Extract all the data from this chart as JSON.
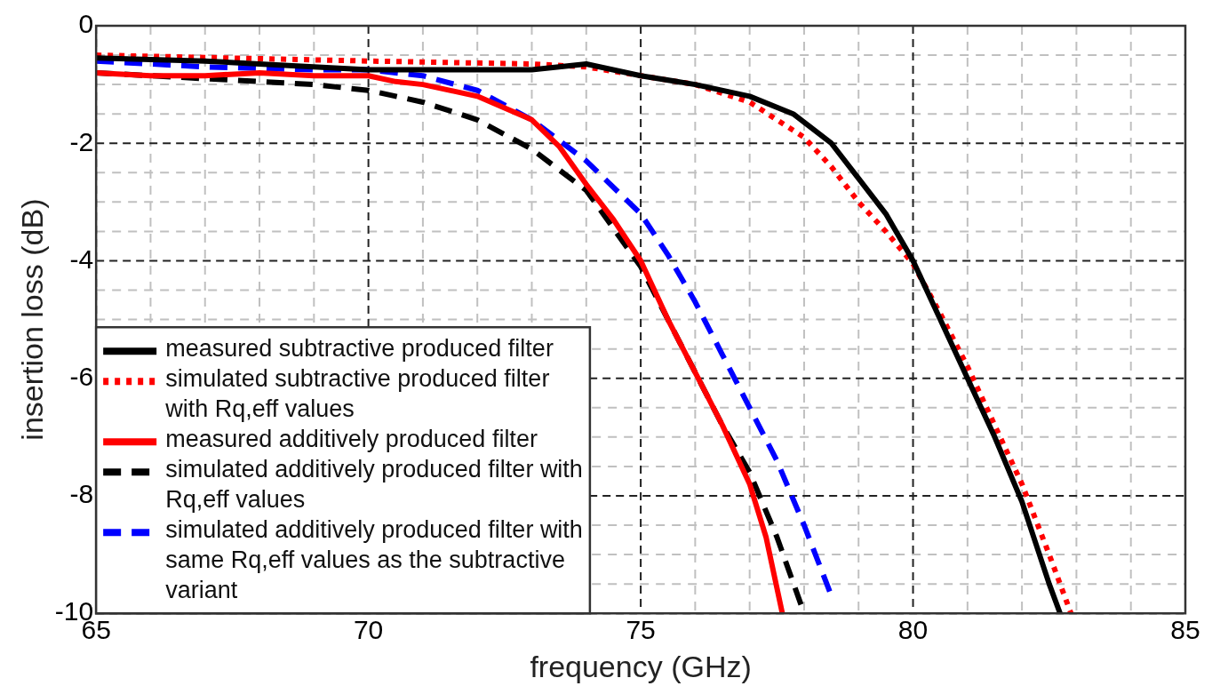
{
  "chart_data": {
    "type": "line",
    "xlabel": "frequency (GHz)",
    "ylabel": "insertion loss (dB)",
    "xlim": [
      65,
      85
    ],
    "ylim": [
      -10,
      0
    ],
    "xticks": [
      65,
      {
        "value": 66,
        "label": null
      },
      {
        "value": 67,
        "label": null
      },
      {
        "value": 68,
        "label": null
      },
      {
        "value": 69,
        "label": null
      },
      70,
      {
        "value": 71,
        "label": null
      },
      {
        "value": 72,
        "label": null
      },
      {
        "value": 73,
        "label": null
      },
      {
        "value": 74,
        "label": null
      },
      75,
      {
        "value": 76,
        "label": null
      },
      {
        "value": 77,
        "label": null
      },
      {
        "value": 78,
        "label": null
      },
      {
        "value": 79,
        "label": null
      },
      80,
      {
        "value": 81,
        "label": null
      },
      {
        "value": 82,
        "label": null
      },
      {
        "value": 83,
        "label": null
      },
      {
        "value": 84,
        "label": null
      },
      85
    ],
    "yticks": [
      -10,
      {
        "value": -9.5,
        "label": null
      },
      {
        "value": -9,
        "label": null
      },
      {
        "value": -8.5,
        "label": null
      },
      -8,
      {
        "value": -7.5,
        "label": null
      },
      {
        "value": -7,
        "label": null
      },
      {
        "value": -6.5,
        "label": null
      },
      -6,
      {
        "value": -5.5,
        "label": null
      },
      {
        "value": -5,
        "label": null
      },
      {
        "value": -4.5,
        "label": null
      },
      -4,
      {
        "value": -3.5,
        "label": null
      },
      {
        "value": -3,
        "label": null
      },
      {
        "value": -2.5,
        "label": null
      },
      -2,
      {
        "value": -1.5,
        "label": null
      },
      {
        "value": -1,
        "label": null
      },
      {
        "value": -0.5,
        "label": null
      },
      0
    ],
    "grid": true,
    "legend": "bottom left",
    "series": [
      {
        "name": "measured subtractive produced filter",
        "color": "#000000",
        "line_style": "solid",
        "x": [
          65,
          67,
          70,
          72,
          73,
          74,
          75,
          76,
          77,
          77.8,
          78.5,
          79,
          79.5,
          80,
          80.5,
          81,
          81.5,
          82,
          82.5,
          82.7
        ],
        "values": [
          -0.55,
          -0.6,
          -0.75,
          -0.75,
          -0.75,
          -0.65,
          -0.85,
          -1.0,
          -1.2,
          -1.5,
          -2.0,
          -2.6,
          -3.2,
          -4.0,
          -5.0,
          -6.0,
          -7.0,
          -8.1,
          -9.5,
          -10
        ]
      },
      {
        "name": "simulated subtractive produced filter with Rq,eff values",
        "color": "#ff0000",
        "line_style": "dotted",
        "x": [
          65,
          70,
          73,
          74,
          75,
          76,
          77,
          78,
          78.5,
          79,
          79.5,
          80,
          80.5,
          81,
          81.5,
          82,
          82.5,
          82.9
        ],
        "values": [
          -0.5,
          -0.6,
          -0.65,
          -0.7,
          -0.85,
          -1.0,
          -1.3,
          -1.9,
          -2.4,
          -3.0,
          -3.5,
          -4.05,
          -4.9,
          -5.8,
          -6.8,
          -7.8,
          -9.0,
          -10
        ]
      },
      {
        "name": "measured additively produced filter",
        "color": "#ff0000",
        "line_style": "solid",
        "x": [
          65,
          66,
          67,
          68,
          69,
          70,
          70.5,
          71,
          72,
          72.5,
          73,
          73.5,
          74,
          74.5,
          75,
          75.5,
          76,
          76.5,
          77,
          77.3,
          77.6
        ],
        "values": [
          -0.8,
          -0.85,
          -0.85,
          -0.8,
          -0.85,
          -0.85,
          -0.95,
          -1.0,
          -1.2,
          -1.4,
          -1.6,
          -2.05,
          -2.7,
          -3.3,
          -4.0,
          -5.0,
          -5.9,
          -6.8,
          -7.8,
          -8.7,
          -10
        ]
      },
      {
        "name": "simulated additively produced filter with Rq,eff values",
        "color": "#000000",
        "line_style": "dashed",
        "x": [
          65,
          67,
          69,
          70,
          71,
          72,
          73,
          74,
          75,
          75.5,
          76,
          76.5,
          77,
          77.5,
          78
        ],
        "values": [
          -0.8,
          -0.9,
          -1.0,
          -1.1,
          -1.3,
          -1.6,
          -2.1,
          -2.8,
          -4.1,
          -5.0,
          -5.9,
          -6.8,
          -7.6,
          -8.7,
          -10
        ]
      },
      {
        "name": "simulated additively produced filter with same Rq,eff values as the subtractive variant",
        "color": "#0000ff",
        "line_style": "dashed",
        "x": [
          65,
          67,
          69,
          70,
          71,
          72,
          73,
          74,
          75,
          75.5,
          76,
          76.5,
          77,
          77.5,
          78,
          78.5
        ],
        "values": [
          -0.6,
          -0.7,
          -0.75,
          -0.75,
          -0.85,
          -1.1,
          -1.6,
          -2.3,
          -3.2,
          -3.9,
          -4.7,
          -5.6,
          -6.5,
          -7.4,
          -8.5,
          -9.7
        ]
      }
    ]
  }
}
